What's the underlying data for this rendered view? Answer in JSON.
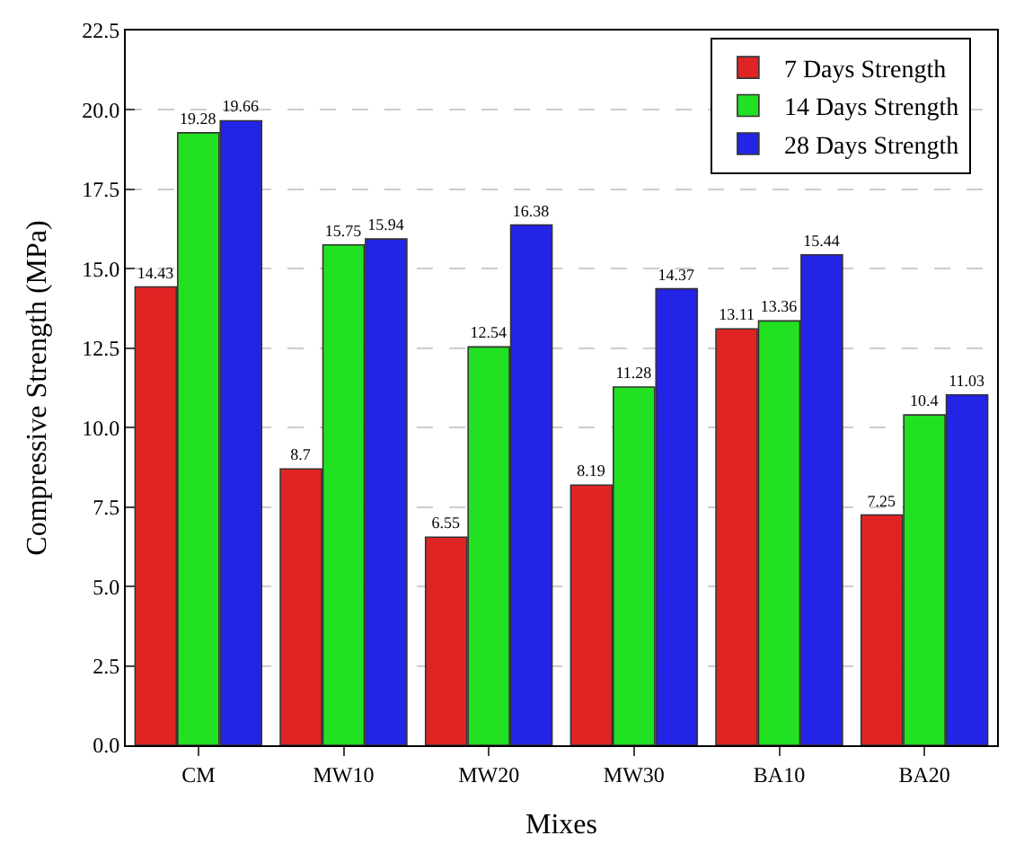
{
  "chart_data": {
    "type": "bar",
    "xlabel": "Mixes",
    "ylabel": "Compressive Strength (MPa)",
    "categories": [
      "CM",
      "MW10",
      "MW20",
      "MW30",
      "BA10",
      "BA20"
    ],
    "series": [
      {
        "name": "7 Days Strength",
        "color": "#e02424",
        "values": [
          14.43,
          8.7,
          6.55,
          8.19,
          13.11,
          7.25
        ]
      },
      {
        "name": "14 Days Strength",
        "color": "#22e022",
        "values": [
          19.28,
          15.75,
          12.54,
          11.28,
          13.36,
          10.4
        ]
      },
      {
        "name": "28 Days Strength",
        "color": "#2424e6",
        "values": [
          19.66,
          15.94,
          16.38,
          14.37,
          15.44,
          11.03
        ]
      }
    ],
    "ylim": [
      0,
      22.5
    ],
    "yticks": [
      {
        "value": 0,
        "label": "0.0"
      },
      {
        "value": 2.5,
        "label": "2.5"
      },
      {
        "value": 5,
        "label": "5.0"
      },
      {
        "value": 7.5,
        "label": "7.5"
      },
      {
        "value": 10,
        "label": "10.0"
      },
      {
        "value": 12.5,
        "label": "12.5"
      },
      {
        "value": 15,
        "label": "15.0"
      },
      {
        "value": 17.5,
        "label": "17.5"
      },
      {
        "value": 20,
        "label": "20.0"
      },
      {
        "value": 22.5,
        "label": "22.5"
      }
    ],
    "grid": "y",
    "legend": "top right",
    "data_labels": true
  }
}
